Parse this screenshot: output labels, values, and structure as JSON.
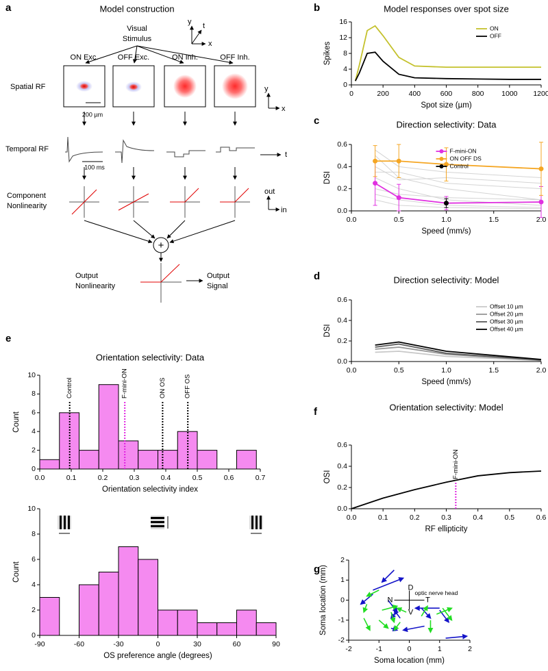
{
  "panel_a": {
    "label": "a",
    "title": "Model construction",
    "stimulus": [
      "Visual",
      "Stimulus"
    ],
    "stimulus_axes": [
      "y",
      "t",
      "x"
    ],
    "columns": [
      "ON Exc.",
      "OFF Exc.",
      "ON Inh.",
      "OFF Inh."
    ],
    "spatial": "Spatial RF",
    "spatial_scale": "200 µm",
    "spatial_axes": [
      "y",
      "x"
    ],
    "temporal": "Temporal RF",
    "temporal_scale": "100 ms",
    "time_axis": "t",
    "component": [
      "Component",
      "Nonlinearity"
    ],
    "nonlin_axes": [
      "out",
      "in"
    ],
    "sum": "+",
    "output_nonlin": [
      "Output",
      "Nonlinearity"
    ],
    "output_signal": [
      "Output",
      "Signal"
    ]
  },
  "chart_data": [
    {
      "panel": "b",
      "type": "line",
      "title": "Model responses over spot size",
      "xlabel": "Spot size (µm)",
      "ylabel": "Spikes",
      "x": [
        25,
        50,
        100,
        150,
        200,
        300,
        400,
        600,
        800,
        1000,
        1200
      ],
      "series": [
        {
          "name": "ON",
          "color": "#c4c12c",
          "values": [
            1,
            5,
            13.8,
            15,
            12.5,
            7,
            4.8,
            4.5,
            4.5,
            4.5,
            4.5
          ]
        },
        {
          "name": "OFF",
          "color": "#000000",
          "values": [
            1,
            3,
            8,
            8.3,
            6,
            2.7,
            1.8,
            1.6,
            1.5,
            1.4,
            1.4
          ]
        }
      ],
      "xlim": [
        0,
        1200
      ],
      "ylim": [
        0,
        16
      ],
      "xticks": [
        0,
        200,
        400,
        600,
        800,
        1000,
        1200
      ],
      "yticks": [
        0,
        4,
        8,
        12,
        16
      ],
      "legend": "upper right"
    },
    {
      "panel": "c",
      "type": "line",
      "title": "Direction selectivity: Data",
      "xlabel": "Speed (mm/s)",
      "ylabel": "DSI",
      "x": [
        0.25,
        0.5,
        1,
        2
      ],
      "markers": true,
      "cell_color": "#d4d4d4",
      "cells": [
        [
          0.5,
          0.3,
          0.2,
          0.1
        ],
        [
          0.35,
          0.35,
          0.25,
          0.2
        ],
        [
          0.3,
          0.2,
          0.1,
          0.05
        ],
        [
          0.2,
          0.15,
          0.12,
          0.1
        ],
        [
          0.15,
          0.1,
          0.05,
          0.03
        ],
        [
          0.4,
          0.28,
          0.3,
          0.25
        ],
        [
          0.1,
          0.05,
          0.03,
          0.02
        ],
        [
          0.55,
          0.4,
          0.35,
          0.3
        ]
      ],
      "series": [
        {
          "name": "F-mini-ON",
          "color": "#e030e0",
          "values": [
            0.25,
            0.12,
            0.07,
            0.08
          ],
          "errors": [
            0.2,
            0.12,
            0.06,
            0.14
          ]
        },
        {
          "name": "ON OFF DS",
          "color": "#f5a623",
          "values": [
            0.45,
            0.45,
            0.42,
            0.38
          ],
          "errors": [
            0.14,
            0.15,
            0.15,
            0.24
          ]
        },
        {
          "name": "Control",
          "color": "#000000",
          "values": [
            null,
            null,
            0.07,
            null
          ],
          "errors": [
            null,
            null,
            0.04,
            null
          ]
        }
      ],
      "xlim": [
        0,
        2
      ],
      "ylim": [
        0,
        0.6
      ],
      "xticks": [
        {
          "value": 0,
          "label": "0.0"
        },
        0.5,
        {
          "value": 1,
          "label": "1.0"
        },
        1.5,
        {
          "value": 2,
          "label": "2.0"
        }
      ],
      "yticks": [
        {
          "value": 0,
          "label": "0.0"
        },
        0.2,
        0.4,
        0.6
      ],
      "legend": "upper center"
    },
    {
      "panel": "d",
      "type": "line",
      "title": "Direction selectivity: Model",
      "xlabel": "Speed (mm/s)",
      "ylabel": "DSI",
      "x": [
        0.25,
        0.5,
        1,
        2
      ],
      "series": [
        {
          "name": "Offset 10 µm",
          "color": "#c8c8c8",
          "values": [
            0.09,
            0.1,
            0.05,
            0.01
          ]
        },
        {
          "name": "Offset 20 µm",
          "color": "#969696",
          "values": [
            0.12,
            0.14,
            0.07,
            0.01
          ]
        },
        {
          "name": "Offset 30 µm",
          "color": "#5a5a5a",
          "values": [
            0.14,
            0.17,
            0.08,
            0.015
          ]
        },
        {
          "name": "Offset 40 µm",
          "color": "#000000",
          "values": [
            0.16,
            0.19,
            0.1,
            0.02
          ]
        }
      ],
      "xlim": [
        0,
        2
      ],
      "ylim": [
        0,
        0.6
      ],
      "xticks": [
        {
          "value": 0,
          "label": "0.0"
        },
        0.5,
        {
          "value": 1,
          "label": "1.0"
        },
        1.5,
        {
          "value": 2,
          "label": "2.0"
        }
      ],
      "yticks": [
        {
          "value": 0,
          "label": "0.0"
        },
        0.2,
        0.4,
        0.6
      ],
      "legend": "upper right"
    },
    {
      "panel": "e",
      "type": "histogram",
      "title": "Orientation selectivity: Data",
      "xlabel": "Orientation selectivity index",
      "ylabel": "Count",
      "bins": [
        0,
        0.0625,
        0.125,
        0.1875,
        0.25,
        0.3125,
        0.375,
        0.4375,
        0.5,
        0.5625,
        0.625,
        0.6875
      ],
      "counts": [
        1,
        6,
        2,
        9,
        3,
        2,
        2,
        4,
        2,
        0,
        2
      ],
      "color": "#f58af0",
      "reference_lines": [
        {
          "label": "Control",
          "value": 0.095,
          "color": "#000000"
        },
        {
          "label": "F-mini-ON",
          "value": 0.27,
          "color": "#e020e0"
        },
        {
          "label": "ON OS",
          "value": 0.39,
          "color": "#000000"
        },
        {
          "label": "OFF OS",
          "value": 0.47,
          "color": "#000000"
        }
      ],
      "xlim": [
        0,
        0.7
      ],
      "ylim": [
        0,
        10
      ],
      "xticks": [
        {
          "value": 0,
          "label": "0.0"
        },
        0.1,
        0.2,
        0.3,
        0.4,
        0.5,
        0.6,
        0.7
      ],
      "yticks": [
        0,
        2,
        4,
        6,
        8,
        10
      ]
    },
    {
      "type": "histogram",
      "xlabel": "OS preference angle (degrees)",
      "ylabel": "Count",
      "bins": [
        -90,
        -75,
        -60,
        -45,
        -30,
        -15,
        0,
        15,
        30,
        45,
        60,
        75,
        90
      ],
      "counts": [
        3,
        0,
        4,
        5,
        7,
        6,
        2,
        2,
        1,
        1,
        2,
        1
      ],
      "color": "#f58af0",
      "xlim": [
        -90,
        90
      ],
      "ylim": [
        0,
        10
      ],
      "xticks": [
        -90,
        -60,
        -30,
        0,
        30,
        60,
        90
      ],
      "yticks": [
        0,
        2,
        4,
        6,
        8,
        10
      ]
    },
    {
      "panel": "f",
      "type": "line",
      "title": "Orientation selectivity: Model",
      "xlabel": "RF ellipticity",
      "ylabel": "OSI",
      "x": [
        0,
        0.1,
        0.2,
        0.3,
        0.4,
        0.5,
        0.6
      ],
      "series": [
        {
          "color": "#000000",
          "values": [
            0,
            0.1,
            0.18,
            0.25,
            0.31,
            0.34,
            0.355
          ]
        }
      ],
      "reference_lines": [
        {
          "label": "F-mini-ON",
          "value": 0.33,
          "color": "#e020e0"
        }
      ],
      "xlim": [
        0,
        0.6
      ],
      "ylim": [
        0,
        0.6
      ],
      "xticks": [
        {
          "value": 0,
          "label": "0.0"
        },
        0.1,
        0.2,
        0.3,
        0.4,
        0.5,
        0.6
      ],
      "yticks": [
        {
          "value": 0,
          "label": "0.0"
        },
        0.2,
        0.4,
        0.6
      ]
    },
    {
      "panel": "g",
      "type": "quiver",
      "xlabel": "Soma location (mm)",
      "ylabel": "Soma location (mm)",
      "compass": [
        "D",
        "N",
        "T",
        "V"
      ],
      "annotation": "optic nerve head",
      "series": [
        {
          "color": "#1414c8",
          "x": [
            -0.5,
            -1.2,
            -1.2,
            -0.4,
            -0.3,
            0.4,
            1.0,
            0.5,
            1.0,
            1.2,
            -0.6,
            -0.7
          ],
          "y": [
            1.5,
            0.5,
            0.3,
            -0.5,
            -0.9,
            -0.4,
            -0.5,
            -1.3,
            -0.4,
            -1.9,
            -1.4,
            0.0
          ],
          "u": [
            -0.4,
            1.0,
            -0.4,
            -0.2,
            -0.2,
            0.3,
            0.3,
            -0.7,
            -0.8,
            0.7,
            0.2,
            0.3
          ],
          "v": [
            -0.6,
            0.6,
            -0.5,
            -0.4,
            0.4,
            -0.5,
            -0.6,
            -0.2,
            0.0,
            0.1,
            -0.1,
            -0.6
          ]
        },
        {
          "color": "#22dd22",
          "x": [
            -1.0,
            -1.4,
            -0.9,
            -0.6,
            -1.0,
            -1.5,
            -0.3,
            0.4,
            1.1,
            0.9,
            0.7,
            -0.1
          ],
          "y": [
            0.5,
            -0.2,
            -0.5,
            -0.6,
            -1.0,
            -0.9,
            -1.1,
            -0.8,
            -0.4,
            -0.7,
            -1.0,
            -0.6
          ],
          "u": [
            -0.4,
            -0.1,
            0.5,
            0.1,
            0.3,
            0.2,
            -0.2,
            0.2,
            0.3,
            0.5,
            0.0,
            -0.3
          ],
          "v": [
            -0.3,
            -0.4,
            0.2,
            -0.5,
            -0.4,
            -0.6,
            -0.4,
            0.5,
            -0.6,
            0.3,
            -0.6,
            0.2
          ]
        }
      ],
      "xlim": [
        -2,
        2
      ],
      "ylim": [
        -2,
        2
      ],
      "xticks": [
        -2,
        -1,
        0,
        1,
        2
      ],
      "yticks": [
        -2,
        -1,
        0,
        1,
        2
      ]
    }
  ]
}
